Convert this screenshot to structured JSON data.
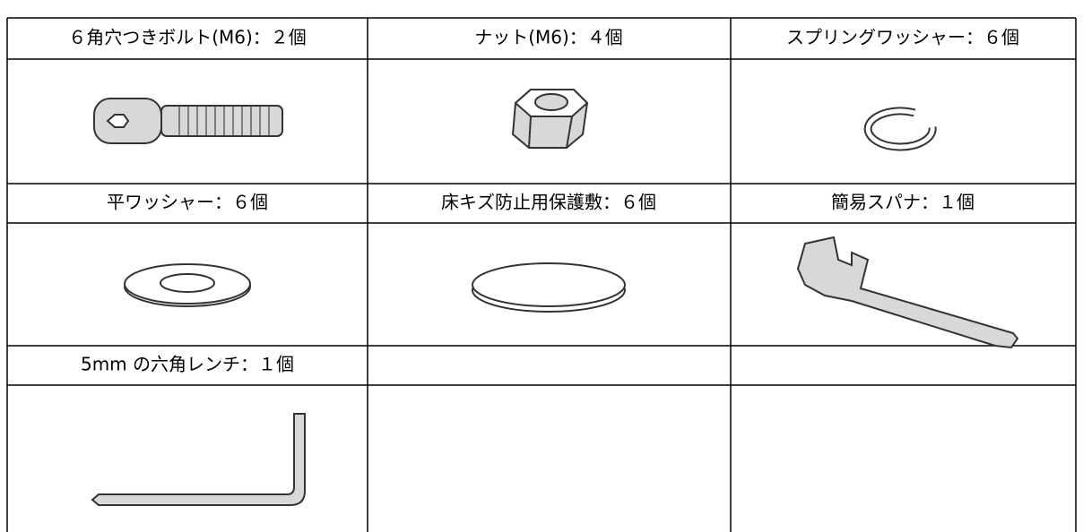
{
  "table": {
    "rows": [
      [
        "６角穴つきボルト(M6)：２個",
        "ナット(M6)：４個",
        "スプリングワッシャー：６個"
      ],
      [
        "平ワッシャー：６個",
        "床キズ防止用保護敷：６個",
        "簡易スパナ：１個"
      ],
      [
        "5mm の六角レンチ：１個"
      ]
    ]
  }
}
